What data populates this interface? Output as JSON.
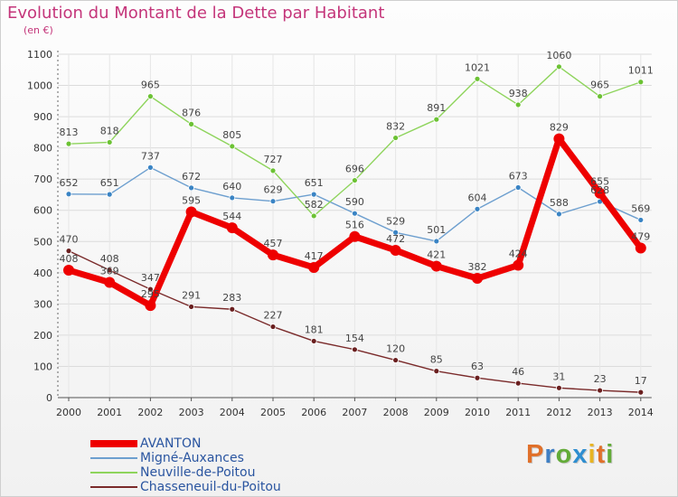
{
  "title": "Evolution du Montant de la Dette par Habitant",
  "unit": "(en €)",
  "logo": {
    "letters": [
      "P",
      "r",
      "o",
      "x",
      "i",
      "t",
      "i"
    ],
    "colors": [
      "#e0702a",
      "#3f7fc4",
      "#63ab38",
      "#2f8ed0",
      "#e8b422",
      "#e0702a",
      "#63ab38"
    ]
  },
  "chart_data": {
    "type": "line",
    "x": [
      "2000",
      "2001",
      "2002",
      "2003",
      "2004",
      "2005",
      "2006",
      "2007",
      "2008",
      "2009",
      "2010",
      "2011",
      "2012",
      "2013",
      "2014"
    ],
    "ylim": [
      0,
      1100
    ],
    "yticks": [
      "0",
      "100",
      "200",
      "300",
      "400",
      "500",
      "600",
      "700",
      "800",
      "900",
      "1000",
      "1100"
    ],
    "grid": true,
    "legend_position": "bottom-left",
    "series": [
      {
        "name": "AVANTON",
        "color": "#ee0000",
        "marker": "#ee0000",
        "width": "thick",
        "values": [
          408,
          369,
          295,
          595,
          544,
          457,
          417,
          516,
          472,
          421,
          382,
          424,
          829,
          655,
          479
        ],
        "labels": [
          "408",
          "369",
          "295",
          "595",
          "544",
          "457",
          "417",
          "516",
          "472",
          "421",
          "382",
          "424",
          "829",
          "655",
          "479"
        ]
      },
      {
        "name": "Migné-Auxances",
        "color": "#6d9fcf",
        "marker": "#3a84c4",
        "width": "thin",
        "values": [
          652,
          651,
          737,
          672,
          640,
          629,
          651,
          590,
          529,
          501,
          604,
          673,
          588,
          628,
          569
        ],
        "labels": [
          "652",
          "651",
          "737",
          "672",
          "640",
          "629",
          "651",
          "590",
          "529",
          "501",
          "604",
          "673",
          "588",
          "628",
          "569"
        ]
      },
      {
        "name": "Neuville-de-Poitou",
        "color": "#8ed45c",
        "marker": "#6cc234",
        "width": "thin",
        "values": [
          813,
          818,
          965,
          876,
          805,
          727,
          582,
          696,
          832,
          891,
          1021,
          938,
          1060,
          965,
          1011
        ],
        "labels": [
          "813",
          "818",
          "965",
          "876",
          "805",
          "727",
          "582",
          "696",
          "832",
          "891",
          "1021",
          "938",
          "1060",
          "965",
          "1011"
        ]
      },
      {
        "name": "Chasseneuil-du-Poitou",
        "color": "#7a2a2a",
        "marker": "#6a1f1f",
        "width": "thin",
        "values": [
          470,
          408,
          347,
          291,
          283,
          227,
          181,
          154,
          120,
          85,
          63,
          46,
          31,
          23,
          17
        ],
        "labels": [
          "470",
          "408",
          "347",
          "291",
          "283",
          "227",
          "181",
          "154",
          "120",
          "85",
          "63",
          "46",
          "31",
          "23",
          "17"
        ]
      }
    ]
  }
}
